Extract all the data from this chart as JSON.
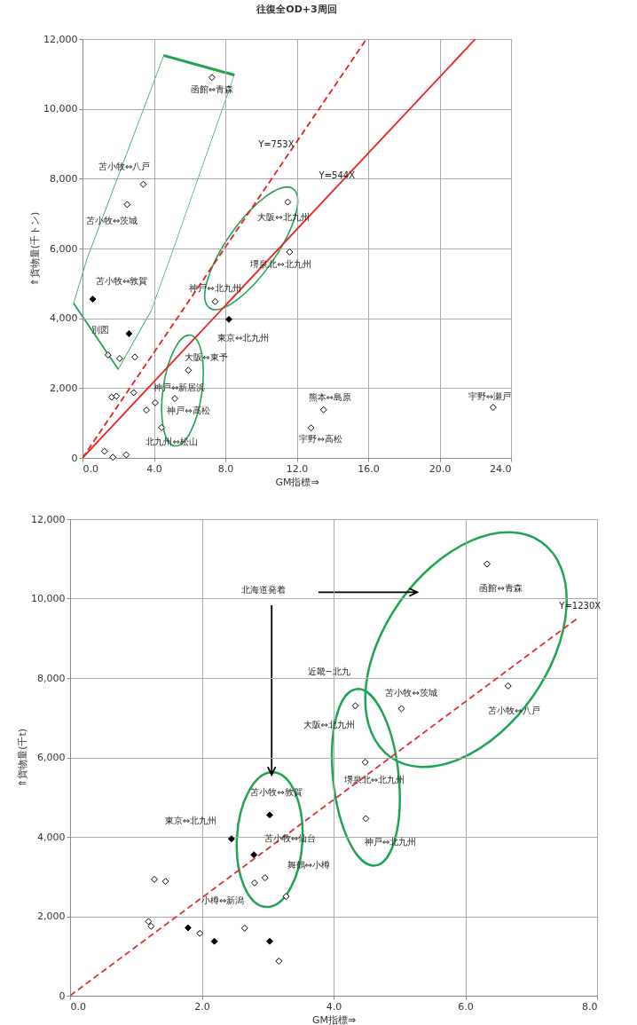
{
  "chart_data": [
    {
      "type": "scatter",
      "title": "往復全OD+3周回",
      "xlabel": "GM指標⇒",
      "ylabel": "⇑貨物量(千トン)",
      "grid": true,
      "marker": "diamond",
      "xlim": [
        0,
        24
      ],
      "xticks": [
        {
          "value": 0,
          "label": "0.0"
        },
        {
          "value": 4,
          "label": "4.0"
        },
        {
          "value": 8,
          "label": "8.0"
        },
        {
          "value": 12,
          "label": "12.0"
        },
        {
          "value": 16,
          "label": "16.0"
        },
        {
          "value": 20,
          "label": "20.0"
        },
        {
          "value": 24,
          "label": "24.0"
        }
      ],
      "ylim": [
        0,
        12000
      ],
      "yticks": [
        0,
        {
          "value": 2000,
          "label": "2,000"
        },
        {
          "value": 4000,
          "label": "4,000"
        },
        {
          "value": 6000,
          "label": "6,000"
        },
        {
          "value": 8000,
          "label": "8,000"
        },
        {
          "value": 10000,
          "label": "10,000"
        },
        {
          "value": 12000,
          "label": "12,000"
        }
      ],
      "series": [
        {
          "type": "scatter",
          "color": "#ffffff",
          "x": [
            7.25,
            3.4,
            2.5,
            11.5,
            11.6,
            7.43,
            5.93,
            1.43,
            2.08,
            2.93,
            1.63,
            1.9,
            2.87,
            4.07,
            5.17,
            3.58,
            4.43,
            1.23,
            1.7,
            2.45,
            13.5,
            12.8,
            23.0
          ],
          "values": [
            10900,
            7840,
            7260,
            7330,
            5900,
            4480,
            2510,
            2950,
            2850,
            2890,
            1740,
            1770,
            1870,
            1580,
            1700,
            1370,
            870,
            190,
            20,
            90,
            1380,
            860,
            1450
          ]
        },
        {
          "type": "scatter",
          "color": "#000000",
          "x": [
            0.57,
            2.6,
            8.2
          ],
          "values": [
            4550,
            3560,
            3970
          ]
        },
        {
          "type": "line",
          "color": "#ee1c1c",
          "line_style": "dashed",
          "marker": "none",
          "x": [
            0,
            15.9
          ],
          "values": [
            0,
            12000
          ]
        },
        {
          "type": "line",
          "color": "#ee1c1c",
          "line_style": "solid",
          "marker": "none",
          "x": [
            0,
            22
          ],
          "values": [
            0,
            12000
          ]
        }
      ],
      "annotations": [
        "函館⇔青森",
        "苫小牧⇔八戸",
        "苫小牧⇔茨城",
        "大阪⇔北九州",
        "堺泉北⇔北九州",
        "苫小牧⇔敦賀",
        "別図",
        "神戸⇔北九州",
        "東京⇔北九州",
        "大阪⇔東予",
        "神戸⇔新居浜",
        "神戸⇔高松",
        "北九州⇔松山",
        "熊本⇔島原",
        "宇野⇔高松",
        "宇野⇔瀬戸",
        "Y=753X",
        "Y=544X"
      ]
    },
    {
      "type": "scatter",
      "xlabel": "GM指標⇒",
      "ylabel": "⇑貨物量(千t)",
      "grid": true,
      "marker": "diamond",
      "xlim": [
        0,
        8
      ],
      "xticks": [
        {
          "value": 0,
          "label": "0.0"
        },
        {
          "value": 2,
          "label": "2.0"
        },
        {
          "value": 4,
          "label": "4.0"
        },
        {
          "value": 6,
          "label": "6.0"
        },
        {
          "value": 8,
          "label": "8.0"
        }
      ],
      "ylim": [
        0,
        12000
      ],
      "yticks": [
        0,
        {
          "value": 2000,
          "label": "2,000"
        },
        {
          "value": 4000,
          "label": "4,000"
        },
        {
          "value": 6000,
          "label": "6,000"
        },
        {
          "value": 8000,
          "label": "8,000"
        },
        {
          "value": 10000,
          "label": "10,000"
        },
        {
          "value": 12000,
          "label": "12,000"
        }
      ],
      "series": [
        {
          "type": "scatter",
          "color": "#ffffff",
          "x": [
            6.33,
            6.65,
            5.03,
            4.33,
            4.48,
            4.49,
            2.96,
            2.8,
            3.28,
            1.28,
            1.45,
            1.19,
            1.23,
            1.97,
            2.65,
            3.17
          ],
          "values": [
            10870,
            7800,
            7230,
            7300,
            5880,
            4460,
            2970,
            2840,
            2500,
            2930,
            2880,
            1870,
            1750,
            1570,
            1700,
            870
          ]
        },
        {
          "type": "scatter",
          "color": "#000000",
          "x": [
            3.03,
            2.45,
            2.79,
            1.79,
            2.19,
            3.03
          ],
          "values": [
            4550,
            3950,
            3550,
            1710,
            1370,
            1370
          ]
        },
        {
          "type": "line",
          "color": "#e03030",
          "line_style": "dashed",
          "marker": "none",
          "x": [
            0,
            7.7
          ],
          "values": [
            0,
            9500
          ]
        }
      ],
      "annotations": [
        "北海道発着",
        "近畿−北九",
        "Y=1230X",
        "函館⇔青森",
        "苫小牧⇔茨城",
        "苫小牧⇔八戸",
        "大阪⇔北九州",
        "堺泉北⇔北九州",
        "神戸⇔北九州",
        "苫小牧⇔敦賀",
        "東京⇔北九州",
        "苫小牧⇔仙台",
        "舞鶴⇔小樽",
        "小樽⇔新潟"
      ]
    }
  ]
}
